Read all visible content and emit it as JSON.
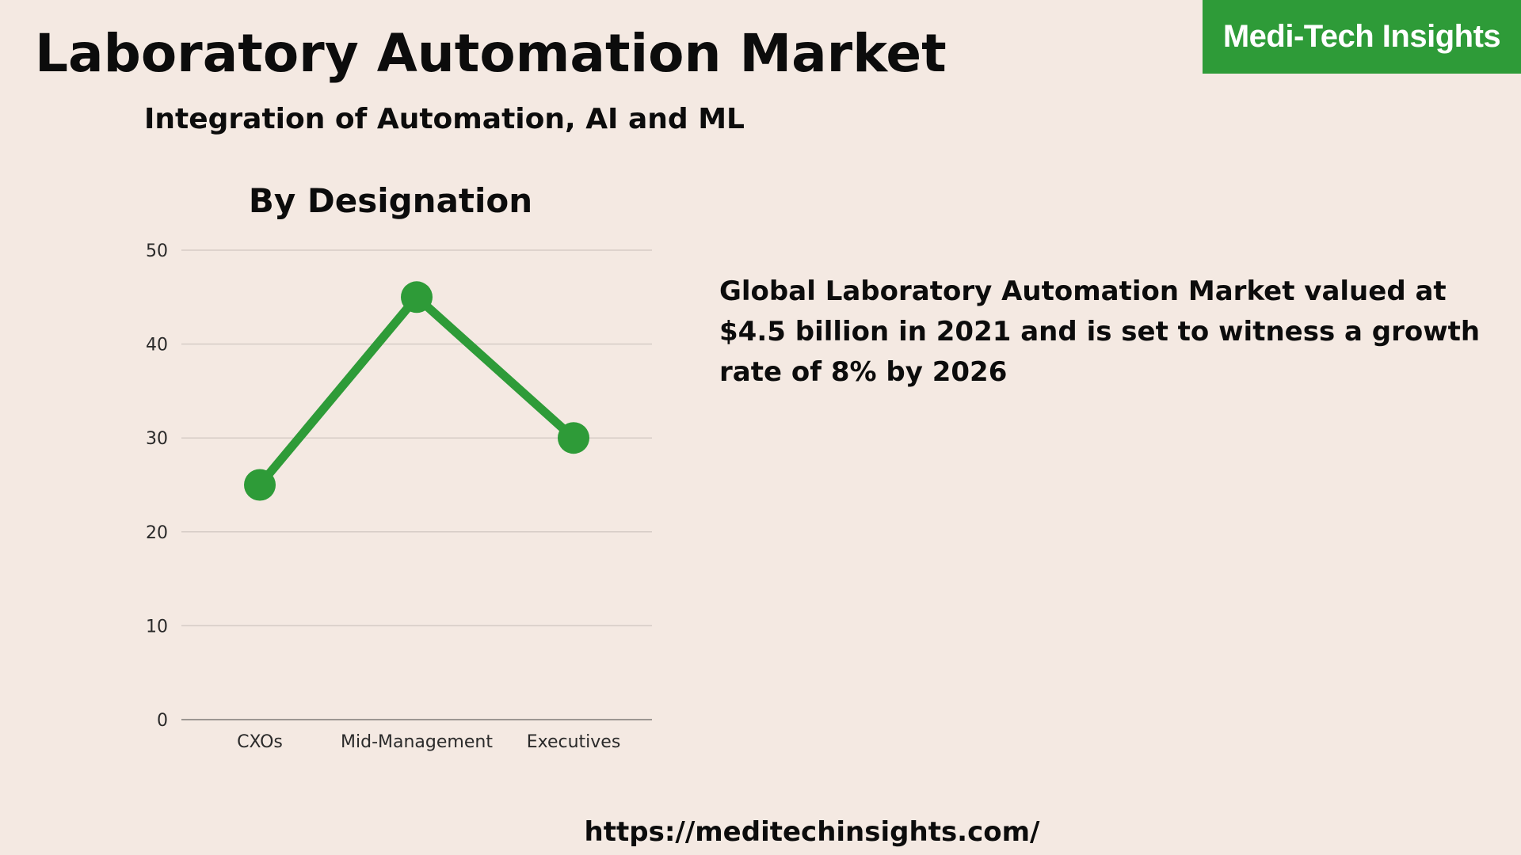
{
  "header": {
    "title": "Laboratory Automation Market",
    "subtitle": "Integration of Automation, AI and ML"
  },
  "brand": {
    "name": "Medi-Tech Insights",
    "color": "#2e9b38"
  },
  "chart_data": {
    "type": "line",
    "title": "By Designation",
    "categories": [
      "CXOs",
      "Mid-Management",
      "Executives"
    ],
    "series": [
      {
        "name": "Designation",
        "values": [
          25,
          45,
          30
        ],
        "color": "#2e9b38"
      }
    ],
    "ylim": [
      0,
      50
    ],
    "yticks": [
      0,
      10,
      20,
      30,
      40,
      50
    ],
    "xlabel": "",
    "ylabel": "",
    "grid": true,
    "legend": "none"
  },
  "description": {
    "text": "Global Laboratory Automation Market valued at $4.5 billion in 2021 and is set to witness a growth rate of 8% by 2026"
  },
  "footer": {
    "url": "https://meditechinsights.com/"
  }
}
